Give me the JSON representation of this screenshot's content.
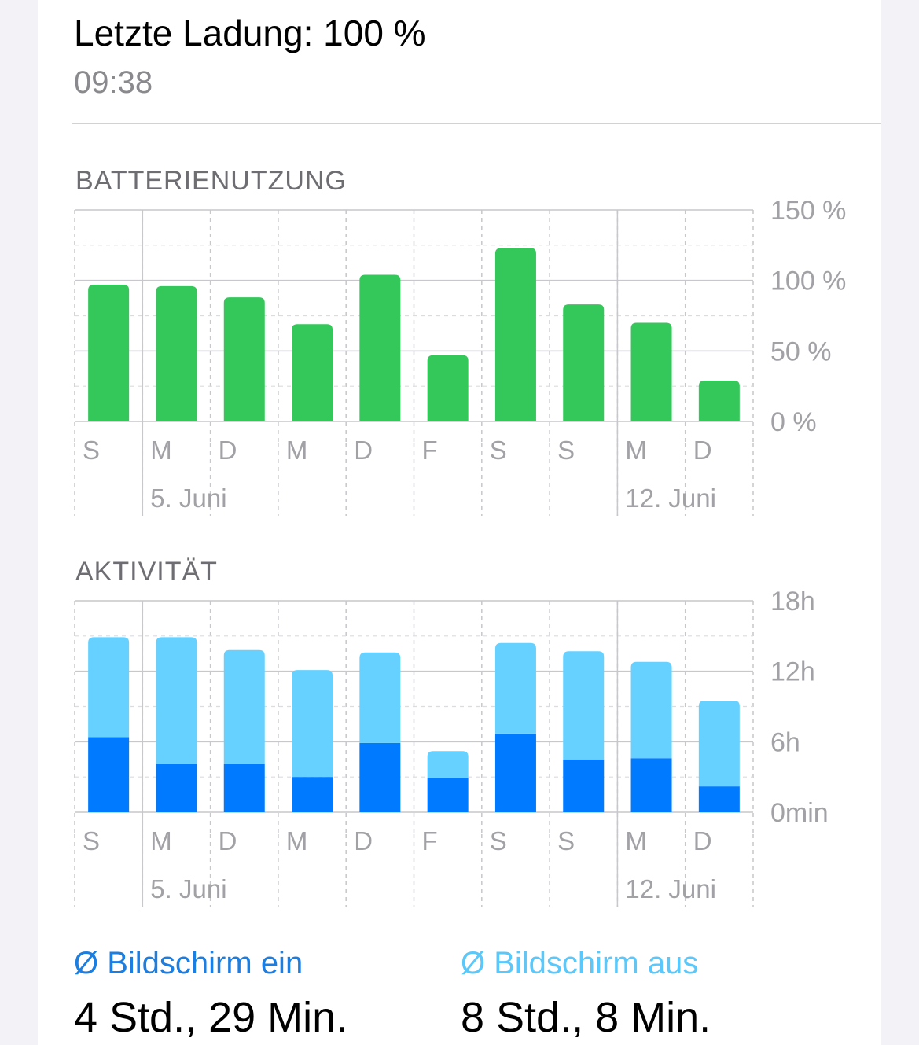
{
  "header": {
    "last_charge": "Letzte Ladung: 100 %",
    "time": "09:38"
  },
  "colors": {
    "battery_green": "#34c759",
    "screen_on_blue": "#007aff",
    "screen_off_blue": "#66d1ff"
  },
  "chart_data": [
    {
      "type": "bar",
      "title": "BATTERIENUTZUNG",
      "categories": [
        "S",
        "M",
        "D",
        "M",
        "D",
        "F",
        "S",
        "S",
        "M",
        "D"
      ],
      "date_labels": [
        {
          "index": 1,
          "label": "5. Juni"
        },
        {
          "index": 8,
          "label": "12. Juni"
        }
      ],
      "values": [
        97,
        96,
        88,
        69,
        104,
        47,
        123,
        83,
        70,
        29
      ],
      "ylim": [
        0,
        150
      ],
      "y_ticks": [
        {
          "value": 0,
          "label": "0 %"
        },
        {
          "value": 50,
          "label": "50 %"
        },
        {
          "value": 100,
          "label": "100 %"
        },
        {
          "value": 150,
          "label": "150 %"
        }
      ],
      "grid": true
    },
    {
      "type": "bar",
      "stacked": true,
      "title": "AKTIVITÄT",
      "categories": [
        "S",
        "M",
        "D",
        "M",
        "D",
        "F",
        "S",
        "S",
        "M",
        "D"
      ],
      "date_labels": [
        {
          "index": 1,
          "label": "5. Juni"
        },
        {
          "index": 8,
          "label": "12. Juni"
        }
      ],
      "series": [
        {
          "name": "Bildschirm ein",
          "values": [
            6.4,
            4.1,
            4.1,
            3.0,
            5.9,
            2.9,
            6.7,
            4.5,
            4.6,
            2.2
          ]
        },
        {
          "name": "Bildschirm aus",
          "values": [
            8.5,
            10.8,
            9.7,
            9.1,
            7.7,
            2.3,
            7.7,
            9.2,
            8.2,
            7.3
          ]
        }
      ],
      "ylim": [
        0,
        18
      ],
      "y_ticks": [
        {
          "value": 0,
          "label": "0min"
        },
        {
          "value": 6,
          "label": "6h"
        },
        {
          "value": 12,
          "label": "12h"
        },
        {
          "value": 18,
          "label": "18h"
        }
      ],
      "grid": true
    }
  ],
  "summary": {
    "screen_on_label": "Ø Bildschirm ein",
    "screen_on_value": "4 Std., 29 Min.",
    "screen_off_label": "Ø Bildschirm aus",
    "screen_off_value": "8 Std., 8 Min."
  }
}
